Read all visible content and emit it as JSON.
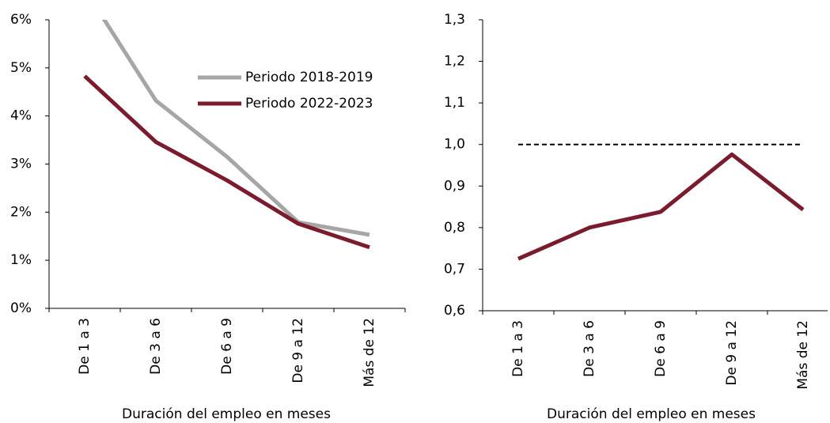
{
  "chart_data": [
    {
      "type": "line",
      "x_label": "Duración del empleo en meses",
      "categories": [
        "De 1 a 3",
        "De 3 a 6",
        "De 6 a 9",
        "De 9 a 12",
        "Más de 12"
      ],
      "series": [
        {
          "name": "Periodo 2018-2019",
          "color": "#a6a6a6",
          "values": [
            6.64,
            4.32,
            3.15,
            1.79,
            1.53
          ]
        },
        {
          "name": "Periodo 2022-2023",
          "color": "#7b1c2e",
          "values": [
            4.83,
            3.46,
            2.66,
            1.76,
            1.27
          ]
        }
      ],
      "ylim": [
        0,
        6
      ],
      "yticks": [
        {
          "value": 0,
          "label": "0%"
        },
        {
          "value": 1,
          "label": "1%"
        },
        {
          "value": 2,
          "label": "2%"
        },
        {
          "value": 3,
          "label": "3%"
        },
        {
          "value": 4,
          "label": "4%"
        },
        {
          "value": 5,
          "label": "5%"
        },
        {
          "value": 6,
          "label": "6%"
        }
      ],
      "legend": "upper right"
    },
    {
      "type": "line",
      "x_label": "Duración del empleo en meses",
      "categories": [
        "De 1 a 3",
        "De 3 a 6",
        "De 6 a 9",
        "De 9 a 12",
        "Más de 12"
      ],
      "series": [
        {
          "color": "#7b1c2e",
          "values": [
            0.725,
            0.8,
            0.838,
            0.976,
            0.843
          ]
        }
      ],
      "reference_line": 1.0,
      "ylim": [
        0.6,
        1.3
      ],
      "yticks": [
        {
          "value": 0.6,
          "label": "0,6"
        },
        {
          "value": 0.7,
          "label": "0,7"
        },
        {
          "value": 0.8,
          "label": "0,8"
        },
        {
          "value": 0.9,
          "label": "0,9"
        },
        {
          "value": 1.0,
          "label": "1,0"
        },
        {
          "value": 1.1,
          "label": "1,1"
        },
        {
          "value": 1.2,
          "label": "1,2"
        },
        {
          "value": 1.3,
          "label": "1,3"
        }
      ]
    }
  ]
}
